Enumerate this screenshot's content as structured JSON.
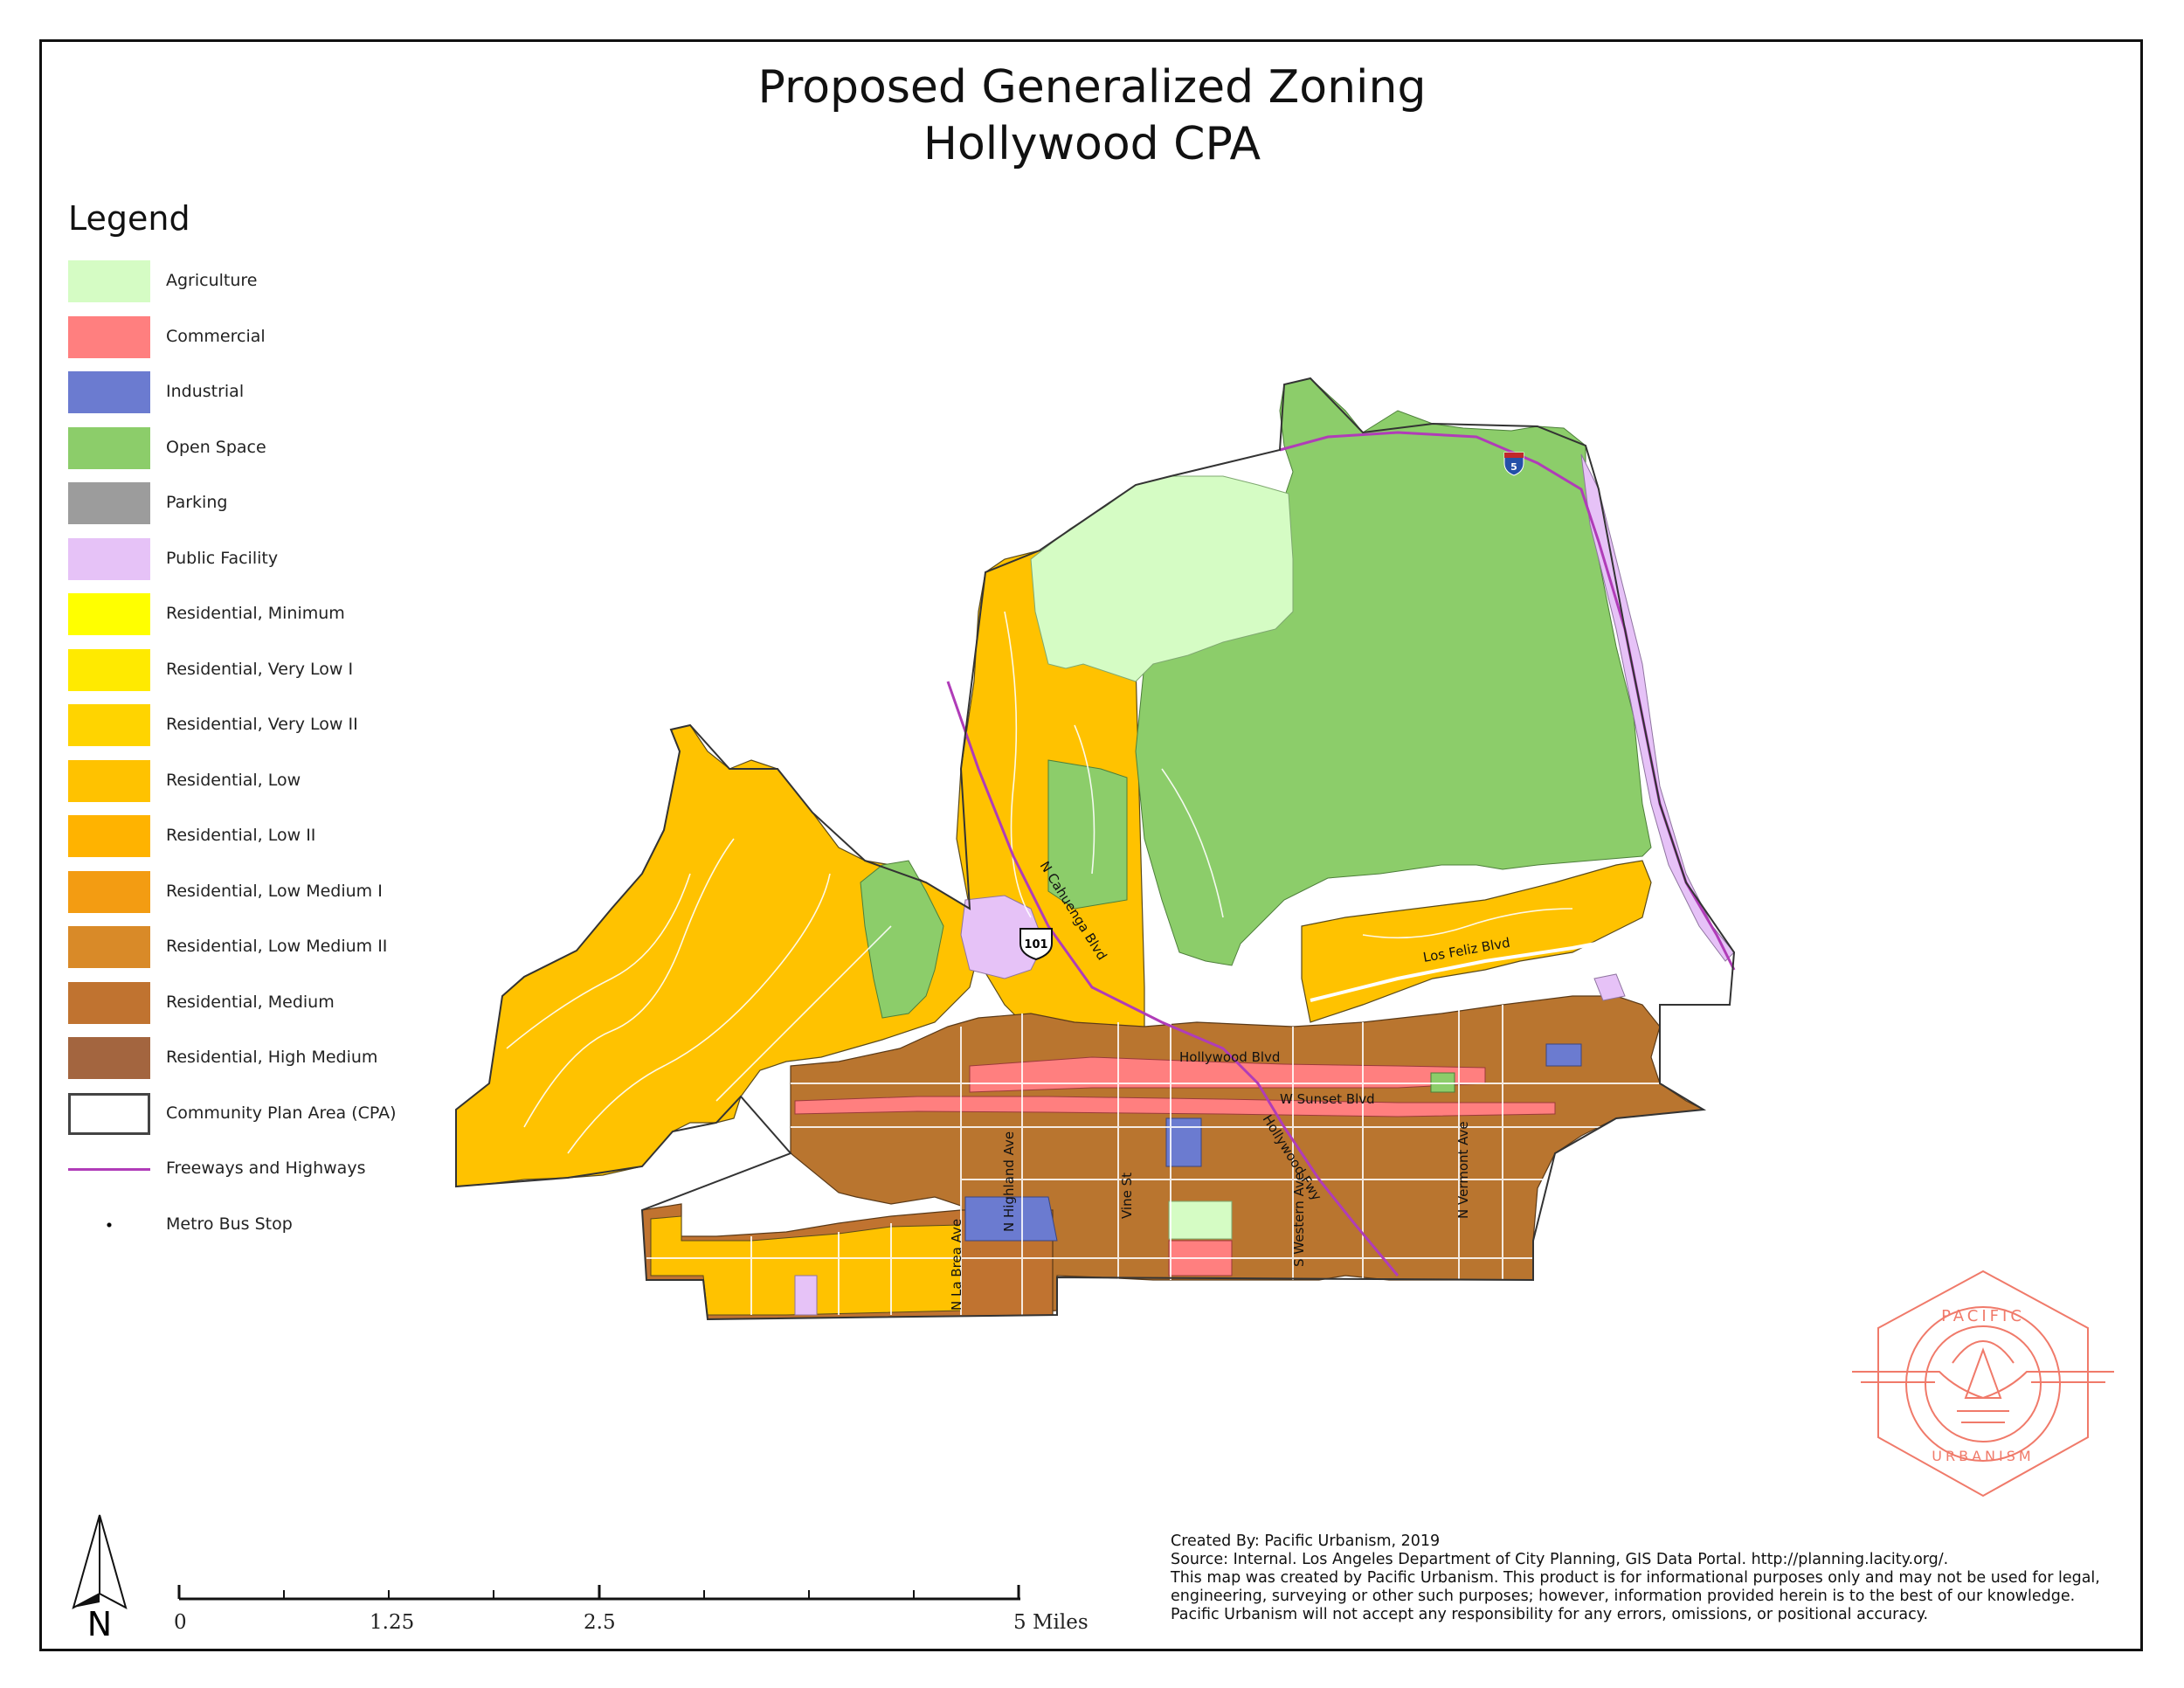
{
  "title": {
    "line1": "Proposed Generalized Zoning",
    "line2": "Hollywood CPA"
  },
  "legend": {
    "heading": "Legend",
    "items": [
      {
        "label": "Agriculture",
        "color": "#d5fcc4",
        "kind": "fill"
      },
      {
        "label": "Commercial",
        "color": "#ff7f7f",
        "kind": "fill"
      },
      {
        "label": "Industrial",
        "color": "#6b7bd0",
        "kind": "fill"
      },
      {
        "label": "Open Space",
        "color": "#8ccd6a",
        "kind": "fill"
      },
      {
        "label": "Parking",
        "color": "#9c9c9c",
        "kind": "fill"
      },
      {
        "label": "Public Facility",
        "color": "#e6c2f7",
        "kind": "fill"
      },
      {
        "label": "Residential, Minimum",
        "color": "#ffff00",
        "kind": "fill"
      },
      {
        "label": "Residential, Very Low I",
        "color": "#ffea00",
        "kind": "fill"
      },
      {
        "label": "Residential, Very Low II",
        "color": "#ffd400",
        "kind": "fill"
      },
      {
        "label": "Residential, Low",
        "color": "#ffc200",
        "kind": "fill"
      },
      {
        "label": "Residential, Low II",
        "color": "#ffb300",
        "kind": "fill"
      },
      {
        "label": "Residential, Low Medium I",
        "color": "#f39c12",
        "kind": "fill"
      },
      {
        "label": "Residential, Low Medium II",
        "color": "#d98a28",
        "kind": "fill"
      },
      {
        "label": "Residential, Medium",
        "color": "#c07330",
        "kind": "fill"
      },
      {
        "label": "Residential, High Medium",
        "color": "#a3653f",
        "kind": "fill"
      },
      {
        "label": "Community Plan Area (CPA)",
        "color": "#444444",
        "kind": "outline"
      },
      {
        "label": "Freeways and Highways",
        "color": "#b03cb8",
        "kind": "line"
      },
      {
        "label": "Metro Bus Stop",
        "color": "#000000",
        "kind": "dot"
      }
    ]
  },
  "map_labels": {
    "cahuenga": "N Cahuenga Blvd",
    "hollywood_blvd": "Hollywood Blvd",
    "sunset": "W Sunset Blvd",
    "los_feliz": "Los Feliz Blvd",
    "hollywood_fwy": "Hollywood Fwy",
    "la_brea": "N La Brea Ave",
    "highland": "N Highland Ave",
    "vine": "Vine St",
    "western": "S Western Ave",
    "vermont": "N Vermont Ave",
    "shield_101": "101",
    "shield_5": "5"
  },
  "north_arrow": "N",
  "scale": {
    "labels": [
      "0",
      "1.25",
      "2.5",
      "5 Miles"
    ]
  },
  "credits": [
    "Created By: Pacific Urbanism, 2019",
    "Source: Internal. Los Angeles Department of City Planning, GIS Data Portal. http://planning.lacity.org/.",
    "This map was created by Pacific Urbanism. This product is for informational purposes only and may not be used for legal,",
    "engineering, surveying or other such purposes; however, information provided herein is to the best of our knowledge.",
    "Pacific Urbanism will not accept any responsibility for any errors, omissions, or positional accuracy."
  ],
  "logo": {
    "top_text": "PACIFIC",
    "bottom_text": "URBANISM",
    "color": "#f07a6a"
  }
}
